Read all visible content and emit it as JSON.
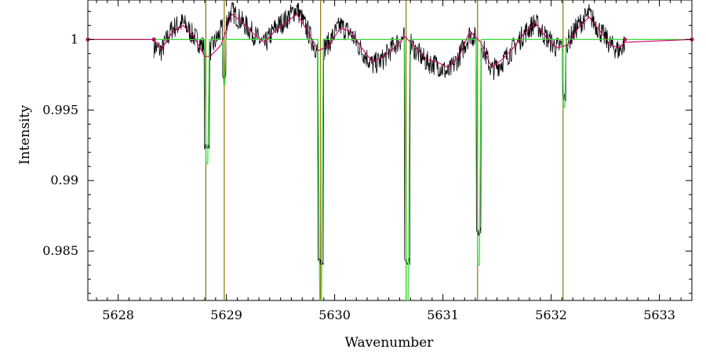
{
  "chart_data": {
    "type": "line",
    "title": "",
    "xlabel": "Wavenumber",
    "ylabel": "Intensity",
    "xlim": [
      5627.72,
      5633.3
    ],
    "ylim": [
      0.9815,
      1.0028
    ],
    "x_ticks": [
      5628,
      5629,
      5630,
      5631,
      5632,
      5633
    ],
    "y_ticks": [
      0.985,
      0.99,
      0.995,
      1
    ],
    "x_tick_labels": [
      "5628",
      "5629",
      "5630",
      "5631",
      "5632",
      "5633"
    ],
    "y_tick_labels": [
      "0.985",
      "0.99",
      "0.995",
      "1"
    ],
    "grid": false,
    "legend": "none",
    "series": [
      {
        "kind": "observed-spectrum",
        "color": "#000000",
        "x": [
          5628.33,
          5628.4,
          5628.5,
          5628.6,
          5628.7,
          5628.8,
          5628.85,
          5628.95,
          5629.05,
          5629.15,
          5629.25,
          5629.35,
          5629.45,
          5629.55,
          5629.65,
          5629.75,
          5629.85,
          5629.95,
          5630.05,
          5630.15,
          5630.25,
          5630.35,
          5630.45,
          5630.55,
          5630.65,
          5630.75,
          5630.85,
          5630.95,
          5631.05,
          5631.15,
          5631.25,
          5631.35,
          5631.45,
          5631.55,
          5631.65,
          5631.75,
          5631.85,
          5631.95,
          5632.05,
          5632.15,
          5632.25,
          5632.35,
          5632.45,
          5632.55,
          5632.63,
          5632.68
        ],
        "y": [
          0.9995,
          0.9992,
          1.0008,
          1.0012,
          1.0002,
          0.9994,
          0.9992,
          1.0006,
          1.002,
          1.0012,
          1.0004,
          0.9996,
          1.0008,
          1.0014,
          1.0022,
          1.0006,
          0.999,
          0.9998,
          1.001,
          1.0004,
          0.9992,
          0.9982,
          0.9986,
          0.9996,
          1.0002,
          0.9992,
          0.9984,
          0.9982,
          0.9976,
          0.9988,
          1.0004,
          0.9998,
          0.9978,
          0.9984,
          0.9994,
          1.0004,
          1.0012,
          1.0002,
          0.9994,
          0.9998,
          1.001,
          1.0018,
          1.0006,
          0.9996,
          0.9992,
          0.9998
        ]
      },
      {
        "kind": "model-fit",
        "color": "#cc0066",
        "x": [
          5627.72,
          5628.33,
          5628.4,
          5628.5,
          5628.6,
          5628.7,
          5628.8,
          5628.85,
          5628.95,
          5629.05,
          5629.15,
          5629.25,
          5629.35,
          5629.45,
          5629.55,
          5629.65,
          5629.75,
          5629.85,
          5629.95,
          5630.05,
          5630.15,
          5630.25,
          5630.35,
          5630.45,
          5630.55,
          5630.65,
          5630.75,
          5630.85,
          5630.95,
          5631.05,
          5631.15,
          5631.25,
          5631.35,
          5631.45,
          5631.55,
          5631.65,
          5631.75,
          5631.85,
          5631.95,
          5632.05,
          5632.15,
          5632.25,
          5632.35,
          5632.45,
          5632.55,
          5632.63,
          5632.68,
          5633.3
        ],
        "y": [
          1.0,
          1.0,
          0.9993,
          1.0005,
          1.001,
          1.0002,
          0.9988,
          0.9988,
          0.9996,
          1.0018,
          1.0012,
          1.0004,
          0.9998,
          1.0006,
          1.0012,
          1.0018,
          1.0006,
          0.9992,
          0.9996,
          1.0008,
          1.0006,
          0.9994,
          0.9984,
          0.9988,
          0.9994,
          1.0002,
          0.9994,
          0.9986,
          0.9984,
          0.998,
          0.9988,
          1.0006,
          0.9998,
          0.998,
          0.9986,
          0.9994,
          1.0004,
          1.0012,
          1.0002,
          0.9994,
          0.9996,
          1.0008,
          1.0016,
          1.0006,
          0.9996,
          0.9994,
          0.9998,
          1.0
        ]
      },
      {
        "kind": "reference-absorption",
        "color": "#33dd33",
        "baseline": 1.0,
        "x_start": 5628.33,
        "x_end": 5632.68,
        "lines": [
          {
            "x": 5628.82,
            "depth": 0.9912,
            "width": 0.045
          },
          {
            "x": 5628.98,
            "depth": 0.9968,
            "width": 0.03
          },
          {
            "x": 5629.87,
            "depth": 0.9815,
            "width": 0.05
          },
          {
            "x": 5630.67,
            "depth": 0.9815,
            "width": 0.05
          },
          {
            "x": 5631.33,
            "depth": 0.984,
            "width": 0.045
          },
          {
            "x": 5632.12,
            "depth": 0.9952,
            "width": 0.035
          }
        ]
      }
    ],
    "vertical_markers": {
      "color": "#8b7500",
      "x": [
        5628.81,
        5628.98,
        5629.87,
        5630.66,
        5631.32,
        5632.11
      ]
    },
    "end_markers": {
      "color": "#aa1155",
      "x": [
        5627.72,
        5628.33,
        5632.68,
        5633.3
      ],
      "y": [
        1.0,
        1.0,
        1.0,
        1.0
      ]
    }
  }
}
